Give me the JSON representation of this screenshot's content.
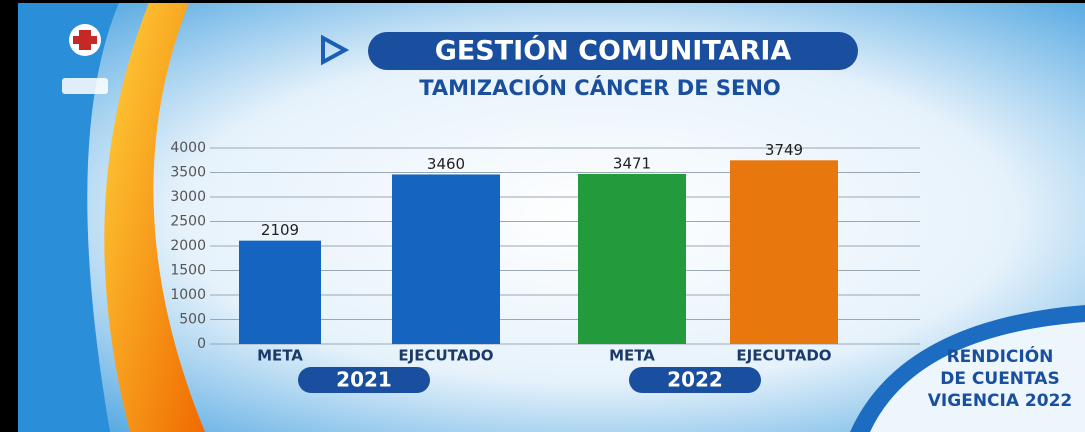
{
  "chart_data": {
    "type": "bar",
    "title": "GESTIÓN COMUNITARIA",
    "subtitle": "TAMIZACIÓN CÁNCER DE SENO",
    "categories": [
      "META",
      "EJECUTADO",
      "META",
      "EJECUTADO"
    ],
    "values": [
      2109,
      3460,
      3471,
      3749
    ],
    "colors": [
      "#1565c0",
      "#1565c0",
      "#239a3b",
      "#e8770e"
    ],
    "groups": [
      "2021",
      "2022"
    ],
    "ylim": [
      0,
      4000
    ],
    "yticks": [
      0,
      500,
      1000,
      1500,
      2000,
      2500,
      3000,
      3500,
      4000
    ],
    "grid": true,
    "badge": [
      "RENDICIÓN",
      "DE CUENTAS",
      "VIGENCIA 2022"
    ]
  }
}
